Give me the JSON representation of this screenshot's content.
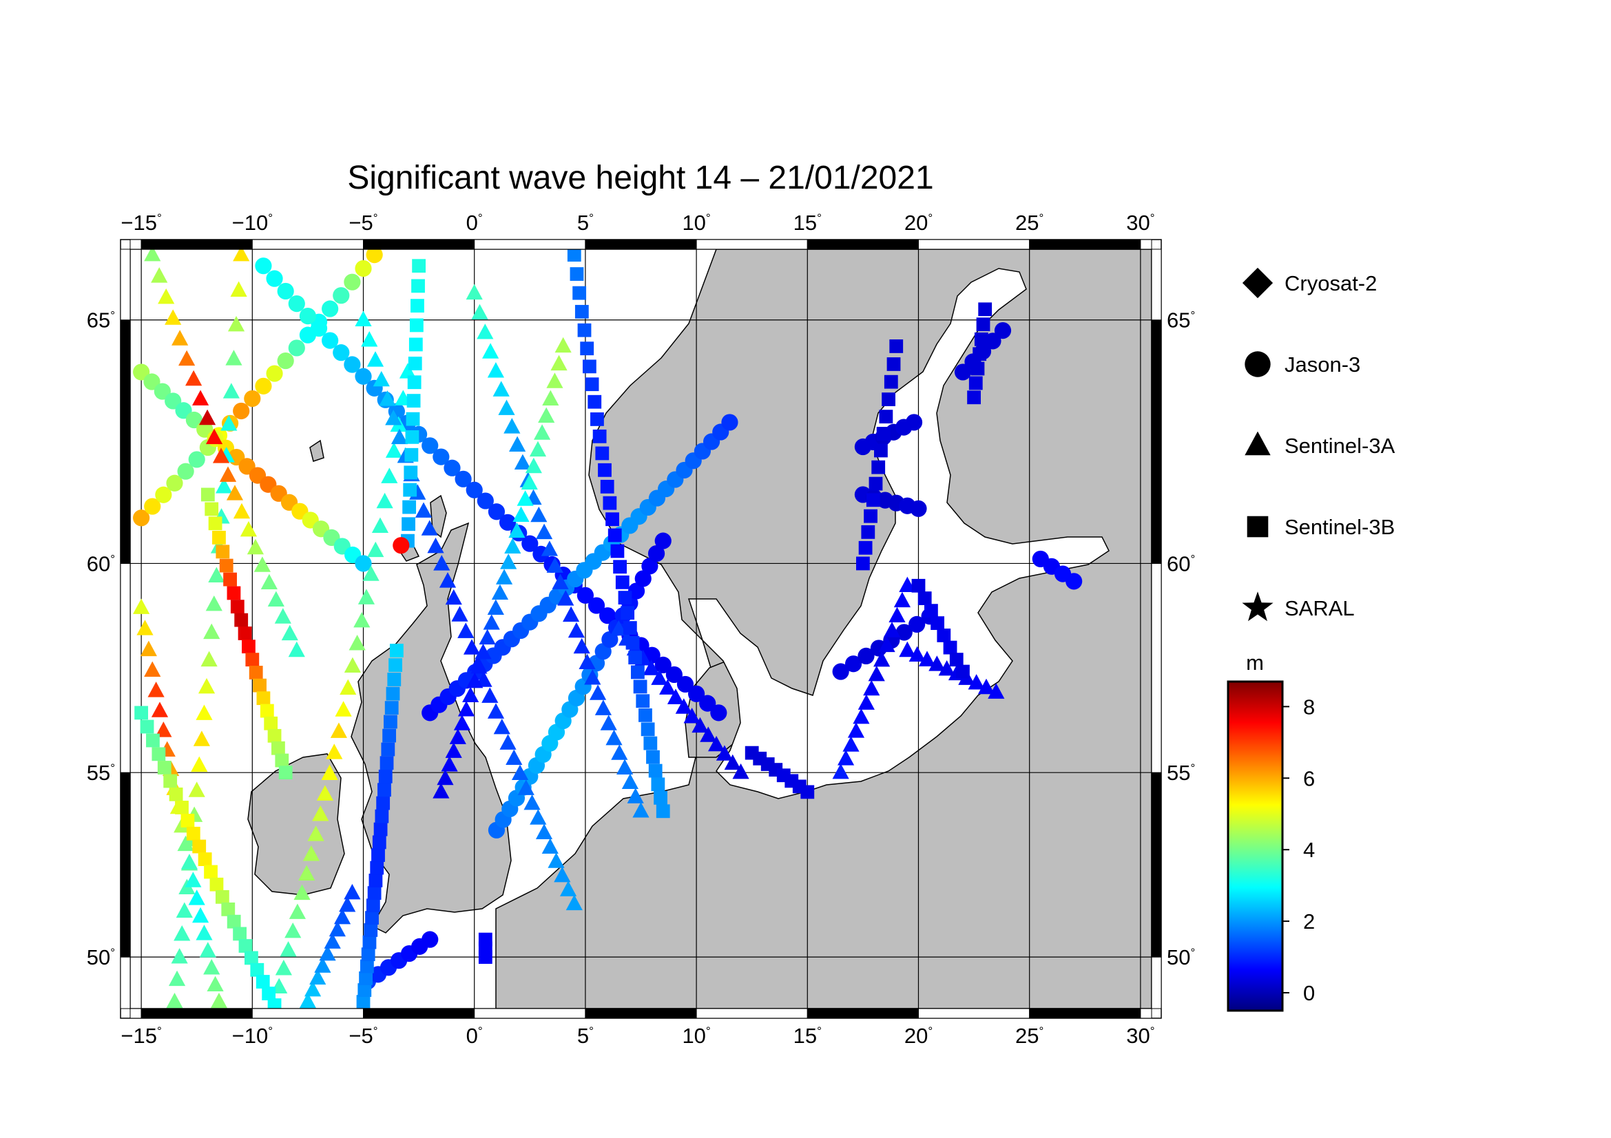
{
  "title": "Significant wave height 14 – 21/01/2021",
  "map": {
    "lon_range": [
      -15.5,
      30.5
    ],
    "lat_range": [
      48.5,
      66.3
    ],
    "lon_ticks": [
      -15,
      -10,
      -5,
      0,
      5,
      10,
      15,
      20,
      25,
      30
    ],
    "lon_tick_labels": [
      "−15",
      "−10",
      "−5",
      "0",
      "5",
      "10",
      "15",
      "20",
      "25",
      "30"
    ],
    "lat_ticks": [
      50,
      55,
      60,
      65
    ],
    "lat_tick_labels": [
      "50",
      "55",
      "60",
      "65"
    ],
    "degree_symbol": "°",
    "sea_color": "#ffffff",
    "land_color": "#bebebe",
    "grid": true
  },
  "legend": {
    "items": [
      {
        "label": "Cryosat-2",
        "marker": "diamond"
      },
      {
        "label": "Jason-3",
        "marker": "circle"
      },
      {
        "label": "Sentinel-3A",
        "marker": "triangle"
      },
      {
        "label": "Sentinel-3B",
        "marker": "square"
      },
      {
        "label": "SARAL",
        "marker": "star"
      }
    ]
  },
  "colorbar": {
    "unit": "m",
    "min": -0.5,
    "max": 8.7,
    "ticks": [
      0,
      2,
      4,
      6,
      8
    ],
    "tick_labels": [
      "0",
      "2",
      "4",
      "6",
      "8"
    ],
    "colormap": [
      "#00007f",
      "#0000ff",
      "#007fff",
      "#00ffff",
      "#7fff7f",
      "#ffff00",
      "#ff7f00",
      "#ff0000",
      "#7f0000"
    ]
  },
  "chart_data": {
    "type": "scatter",
    "description_units": "lon (deg E), lat (deg N), significant wave height (m)",
    "tracks": [
      {
        "satellite": "Jason-3",
        "start": [
          -15.0,
          61.0
        ],
        "end": [
          -4.5,
          66.2
        ],
        "n": 22,
        "swh": [
          6.0,
          5.5,
          5.0,
          4.6,
          4.0,
          3.8,
          4.5,
          5.2,
          5.8,
          6.2,
          6.0,
          5.5,
          5.0,
          4.2,
          3.6,
          3.0,
          3.0,
          3.2,
          3.5,
          4.2,
          5.0,
          5.5
        ]
      },
      {
        "satellite": "Jason-3",
        "start": [
          -15.0,
          64.0
        ],
        "end": [
          -5.0,
          60.0
        ],
        "n": 22,
        "swh": [
          4.5,
          4.2,
          4.0,
          3.8,
          3.6,
          4.0,
          4.5,
          5.0,
          5.5,
          6.0,
          6.2,
          6.4,
          6.5,
          6.3,
          6.0,
          5.5,
          5.0,
          4.5,
          4.0,
          3.5,
          3.0,
          2.5
        ]
      },
      {
        "satellite": "Jason-3",
        "start": [
          -9.5,
          66.0
        ],
        "end": [
          11.0,
          56.5
        ],
        "n": 42,
        "swh": [
          3.0,
          3.0,
          3.1,
          3.2,
          3.2,
          3.0,
          2.8,
          2.6,
          2.4,
          2.2,
          2.0,
          2.0,
          1.9,
          1.8,
          1.8,
          1.7,
          1.6,
          1.5,
          1.4,
          1.3,
          1.2,
          1.1,
          1.0,
          1.0,
          0.9,
          0.9,
          0.8,
          0.8,
          0.8,
          0.7,
          0.7,
          0.7,
          0.6,
          0.6,
          0.6,
          0.6,
          0.5,
          0.5,
          0.5,
          0.5,
          0.5,
          0.5
        ]
      },
      {
        "satellite": "Jason-3",
        "start": [
          -2.0,
          56.5
        ],
        "end": [
          11.5,
          63.0
        ],
        "n": 34,
        "swh": [
          0.6,
          0.7,
          0.8,
          0.9,
          1.0,
          1.0,
          1.1,
          1.2,
          1.2,
          1.3,
          1.4,
          1.5,
          1.6,
          1.6,
          1.7,
          1.8,
          1.9,
          2.0,
          2.0,
          2.0,
          2.1,
          2.1,
          2.0,
          2.0,
          1.9,
          1.8,
          1.8,
          1.7,
          1.6,
          1.5,
          1.4,
          1.3,
          1.2,
          1.1
        ]
      },
      {
        "satellite": "Jason-3",
        "start": [
          1.0,
          53.5
        ],
        "end": [
          8.5,
          60.5
        ],
        "n": 26,
        "swh": [
          1.6,
          1.7,
          1.8,
          1.9,
          2.0,
          2.1,
          2.2,
          2.3,
          2.4,
          2.4,
          2.3,
          2.2,
          2.1,
          2.0,
          1.8,
          1.6,
          1.4,
          1.2,
          1.0,
          0.9,
          0.8,
          0.7,
          0.6,
          0.6,
          0.5,
          0.5
        ]
      },
      {
        "satellite": "Jason-3",
        "start": [
          -4.8,
          49.3
        ],
        "end": [
          -2.0,
          50.5
        ],
        "n": 7,
        "swh": [
          1.2,
          1.0,
          0.9,
          0.8,
          0.7,
          0.6,
          0.6
        ]
      },
      {
        "satellite": "Jason-3",
        "start": [
          17.5,
          62.5
        ],
        "end": [
          19.8,
          63.0
        ],
        "n": 6,
        "swh": [
          0.3,
          0.3,
          0.2,
          0.2,
          0.3,
          0.3
        ]
      },
      {
        "satellite": "Jason-3",
        "start": [
          17.5,
          61.5
        ],
        "end": [
          20.0,
          61.2
        ],
        "n": 6,
        "swh": [
          0.3,
          0.2,
          0.2,
          0.2,
          0.3,
          0.3
        ]
      },
      {
        "satellite": "Jason-3",
        "start": [
          16.5,
          57.5
        ],
        "end": [
          20.5,
          58.8
        ],
        "n": 8,
        "swh": [
          0.4,
          0.4,
          0.3,
          0.3,
          0.3,
          0.3,
          0.4,
          0.4
        ]
      },
      {
        "satellite": "Jason-3",
        "start": [
          22.0,
          64.0
        ],
        "end": [
          23.8,
          64.8
        ],
        "n": 5,
        "swh": [
          0.3,
          0.3,
          0.3,
          0.3,
          0.3
        ]
      },
      {
        "satellite": "Jason-3",
        "start": [
          25.5,
          60.1
        ],
        "end": [
          27.0,
          59.6
        ],
        "n": 4,
        "swh": [
          0.6,
          0.6,
          0.7,
          0.7
        ]
      },
      {
        "satellite": "Sentinel-3A",
        "start": [
          -13.5,
          48.7
        ],
        "end": [
          -10.5,
          66.2
        ],
        "n": 28,
        "swh": [
          4.0,
          3.8,
          3.6,
          3.5,
          3.5,
          3.6,
          3.8,
          4.0,
          4.3,
          4.8,
          5.2,
          5.5,
          5.2,
          5.0,
          4.6,
          4.2,
          4.0,
          3.8,
          3.6,
          3.4,
          3.2,
          3.0,
          3.2,
          3.5,
          4.0,
          4.5,
          5.0,
          5.5
        ]
      },
      {
        "satellite": "Sentinel-3A",
        "start": [
          -15.0,
          59.0
        ],
        "end": [
          -11.5,
          48.7
        ],
        "n": 22,
        "swh": [
          5.0,
          5.5,
          6.0,
          6.5,
          7.0,
          7.2,
          7.0,
          6.5,
          6.0,
          5.5,
          5.0,
          4.5,
          4.0,
          3.5,
          3.2,
          3.0,
          3.0,
          3.2,
          3.5,
          3.8,
          4.0,
          4.2
        ]
      },
      {
        "satellite": "Sentinel-3A",
        "start": [
          -14.5,
          66.2
        ],
        "end": [
          -8.0,
          58.0
        ],
        "n": 22,
        "swh": [
          4.2,
          4.5,
          5.0,
          5.5,
          6.0,
          6.5,
          7.0,
          7.5,
          8.0,
          7.5,
          7.0,
          6.5,
          6.0,
          5.5,
          5.0,
          4.5,
          4.2,
          4.0,
          3.8,
          3.6,
          3.5,
          3.4
        ]
      },
      {
        "satellite": "Sentinel-3A",
        "start": [
          -9.0,
          48.6
        ],
        "end": [
          -3.0,
          64.0
        ],
        "n": 30,
        "swh": [
          3.5,
          3.5,
          3.6,
          3.6,
          3.8,
          4.0,
          4.2,
          4.4,
          4.5,
          4.6,
          4.8,
          5.0,
          5.2,
          5.4,
          5.6,
          5.2,
          5.0,
          4.6,
          4.2,
          4.0,
          3.8,
          3.6,
          3.5,
          3.4,
          3.3,
          3.2,
          3.1,
          3.0,
          3.0,
          3.0
        ]
      },
      {
        "satellite": "Sentinel-3A",
        "start": [
          -5.0,
          65.0
        ],
        "end": [
          4.5,
          51.5
        ],
        "n": 36,
        "swh": [
          3.0,
          3.0,
          2.8,
          2.6,
          2.4,
          2.2,
          2.0,
          1.8,
          1.6,
          1.5,
          1.4,
          1.3,
          1.2,
          1.2,
          1.1,
          1.0,
          1.0,
          1.0,
          0.9,
          0.9,
          0.9,
          1.0,
          1.1,
          1.2,
          1.3,
          1.4,
          1.5,
          1.6,
          1.7,
          1.8,
          1.8,
          1.9,
          2.0,
          2.0,
          2.1,
          2.1
        ]
      },
      {
        "satellite": "Sentinel-3A",
        "start": [
          0.0,
          65.5
        ],
        "end": [
          7.5,
          54.0
        ],
        "n": 32,
        "swh": [
          3.5,
          3.4,
          3.2,
          3.0,
          2.8,
          2.6,
          2.4,
          2.2,
          2.0,
          1.9,
          1.8,
          1.7,
          1.6,
          1.5,
          1.4,
          1.3,
          1.2,
          1.1,
          1.0,
          1.0,
          1.0,
          1.1,
          1.2,
          1.3,
          1.4,
          1.5,
          1.6,
          1.6,
          1.7,
          1.8,
          1.8,
          1.9
        ]
      },
      {
        "satellite": "Sentinel-3A",
        "start": [
          4.0,
          64.5
        ],
        "end": [
          -1.5,
          54.5
        ],
        "n": 30,
        "swh": [
          4.5,
          4.5,
          4.4,
          4.2,
          4.0,
          3.8,
          3.6,
          3.4,
          3.2,
          3.0,
          2.8,
          2.6,
          2.4,
          2.2,
          2.0,
          1.8,
          1.6,
          1.4,
          1.2,
          1.0,
          0.9,
          0.8,
          0.8,
          0.7,
          0.7,
          0.6,
          0.6,
          0.6,
          0.5,
          0.5
        ]
      },
      {
        "satellite": "Sentinel-3A",
        "start": [
          6.5,
          58.5
        ],
        "end": [
          12.0,
          55.0
        ],
        "n": 16,
        "swh": [
          1.2,
          1.1,
          1.0,
          0.9,
          0.8,
          0.8,
          0.7,
          0.7,
          0.6,
          0.6,
          0.5,
          0.5,
          0.5,
          0.5,
          0.4,
          0.4
        ]
      },
      {
        "satellite": "Sentinel-3A",
        "start": [
          16.5,
          55.0
        ],
        "end": [
          19.5,
          59.5
        ],
        "n": 14,
        "swh": [
          0.9,
          0.8,
          0.8,
          0.7,
          0.7,
          0.6,
          0.6,
          0.5,
          0.5,
          0.5,
          0.5,
          0.6,
          0.6,
          0.7
        ]
      },
      {
        "satellite": "Sentinel-3A",
        "start": [
          19.5,
          58.0
        ],
        "end": [
          23.5,
          57.0
        ],
        "n": 10,
        "swh": [
          0.6,
          0.6,
          0.6,
          0.5,
          0.5,
          0.5,
          0.5,
          0.6,
          0.6,
          0.6
        ]
      },
      {
        "satellite": "Sentinel-3A",
        "start": [
          -7.5,
          48.7
        ],
        "end": [
          -5.5,
          51.8
        ],
        "n": 10,
        "swh": [
          2.5,
          2.4,
          2.2,
          2.0,
          1.8,
          1.6,
          1.5,
          1.4,
          1.3,
          1.2
        ]
      },
      {
        "satellite": "Sentinel-3B",
        "start": [
          -15.0,
          56.5
        ],
        "end": [
          -9.0,
          48.6
        ],
        "n": 24,
        "swh": [
          3.5,
          3.6,
          3.8,
          4.0,
          4.2,
          4.5,
          4.8,
          5.0,
          5.2,
          5.4,
          5.5,
          5.4,
          5.2,
          5.0,
          4.6,
          4.3,
          4.0,
          3.8,
          3.6,
          3.4,
          3.2,
          3.0,
          3.0,
          3.0
        ]
      },
      {
        "satellite": "Sentinel-3B",
        "start": [
          -12.0,
          61.5
        ],
        "end": [
          -8.5,
          55.0
        ],
        "n": 22,
        "swh": [
          4.5,
          4.8,
          5.0,
          5.5,
          6.0,
          6.5,
          7.0,
          7.5,
          7.8,
          8.0,
          7.8,
          7.5,
          7.0,
          6.5,
          6.0,
          5.6,
          5.2,
          5.0,
          4.8,
          4.5,
          4.3,
          4.0
        ]
      },
      {
        "satellite": "Sentinel-3B",
        "start": [
          -5.0,
          48.7
        ],
        "end": [
          -3.5,
          58.0
        ],
        "n": 28,
        "swh": [
          2.0,
          1.9,
          1.8,
          1.7,
          1.6,
          1.5,
          1.4,
          1.3,
          1.2,
          1.1,
          1.0,
          1.0,
          1.0,
          1.0,
          1.0,
          1.1,
          1.1,
          1.2,
          1.2,
          1.3,
          1.4,
          1.5,
          1.6,
          1.8,
          2.0,
          2.2,
          2.4,
          2.6
        ]
      },
      {
        "satellite": "Sentinel-3B",
        "start": [
          0.5,
          50.0
        ],
        "end": [
          0.5,
          50.5
        ],
        "n": 3,
        "swh": [
          0.6,
          0.6,
          0.6
        ]
      },
      {
        "satellite": "Sentinel-3B",
        "start": [
          4.5,
          66.2
        ],
        "end": [
          8.5,
          54.0
        ],
        "n": 36,
        "swh": [
          1.8,
          1.7,
          1.6,
          1.5,
          1.4,
          1.3,
          1.2,
          1.1,
          1.0,
          1.0,
          0.9,
          0.9,
          0.8,
          0.8,
          0.8,
          0.7,
          0.7,
          0.7,
          0.8,
          0.8,
          0.9,
          1.0,
          1.0,
          1.1,
          1.2,
          1.3,
          1.4,
          1.5,
          1.6,
          1.7,
          1.8,
          1.8,
          1.9,
          2.0,
          2.0,
          2.0
        ]
      },
      {
        "satellite": "Sentinel-3B",
        "start": [
          -2.5,
          66.0
        ],
        "end": [
          -3.0,
          60.5
        ],
        "n": 16,
        "swh": [
          3.2,
          3.1,
          3.0,
          3.0,
          2.9,
          2.8,
          2.8,
          2.7,
          2.6,
          2.6,
          2.5,
          2.4,
          2.4,
          2.3,
          2.2,
          2.2
        ]
      },
      {
        "satellite": "Sentinel-3B",
        "start": [
          17.5,
          60.0
        ],
        "end": [
          19.0,
          64.5
        ],
        "n": 14,
        "swh": [
          0.5,
          0.5,
          0.4,
          0.4,
          0.4,
          0.3,
          0.3,
          0.3,
          0.3,
          0.3,
          0.3,
          0.3,
          0.3,
          0.3
        ]
      },
      {
        "satellite": "Sentinel-3B",
        "start": [
          22.5,
          63.5
        ],
        "end": [
          23.0,
          65.2
        ],
        "n": 7,
        "swh": [
          0.4,
          0.4,
          0.3,
          0.3,
          0.3,
          0.3,
          0.3
        ]
      },
      {
        "satellite": "Sentinel-3B",
        "start": [
          12.5,
          55.5
        ],
        "end": [
          15.0,
          54.5
        ],
        "n": 8,
        "swh": [
          0.3,
          0.3,
          0.3,
          0.3,
          0.4,
          0.4,
          0.4,
          0.4
        ]
      },
      {
        "satellite": "Sentinel-3B",
        "start": [
          20.0,
          59.5
        ],
        "end": [
          22.0,
          57.5
        ],
        "n": 8,
        "swh": [
          0.4,
          0.4,
          0.5,
          0.5,
          0.5,
          0.5,
          0.4,
          0.4
        ]
      }
    ],
    "single_points": [
      {
        "satellite": "Jason-3",
        "lon": -3.3,
        "lat": 60.4,
        "swh": 7.5
      }
    ]
  }
}
